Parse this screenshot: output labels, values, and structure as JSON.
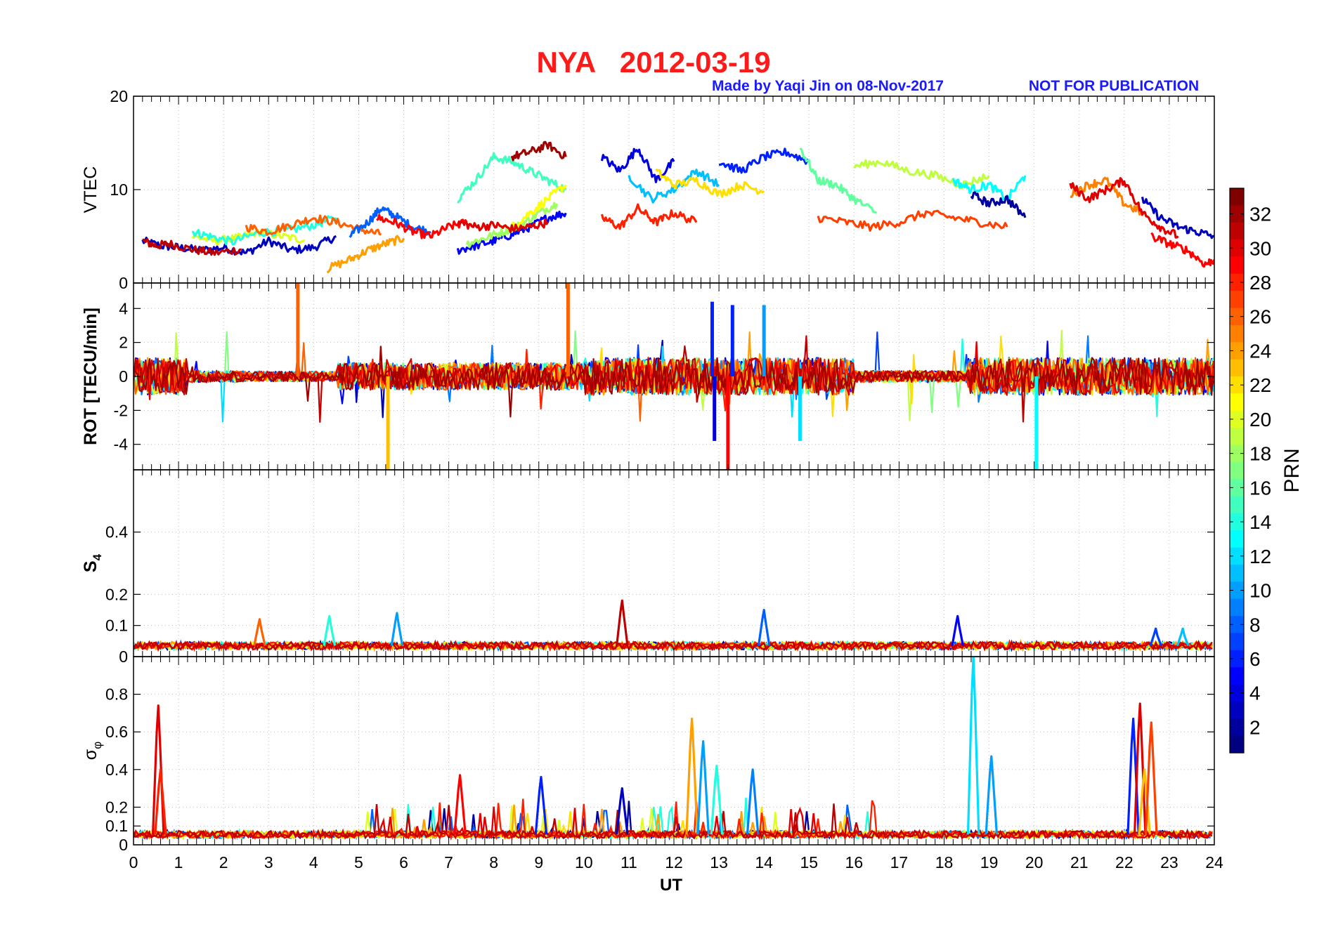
{
  "header": {
    "title": "NYA   2012-03-19",
    "credit": "Made by Yaqi Jin on 08-Nov-2017",
    "notice": "NOT FOR PUBLICATION",
    "title_color": "#ff1a1a",
    "credit_color": "#1a1aff"
  },
  "chart_data": {
    "type": "line",
    "x_axis": {
      "label": "UT",
      "range": [
        0,
        24
      ],
      "ticks": [
        0,
        1,
        2,
        3,
        4,
        5,
        6,
        7,
        8,
        9,
        10,
        11,
        12,
        13,
        14,
        15,
        16,
        17,
        18,
        19,
        20,
        21,
        22,
        23,
        24
      ]
    },
    "grid": true,
    "panels": [
      {
        "id": "vtec",
        "ylabel": "VTEC",
        "ylim": [
          0,
          20
        ],
        "yticks": [
          0,
          10,
          20
        ],
        "series": [
          {
            "prn": 3,
            "x": [
              0.2,
              0.6,
              1.0,
              1.5,
              2.0,
              2.5,
              3.0,
              3.5,
              4.0,
              4.5
            ],
            "y": [
              4.5,
              4.0,
              3.8,
              3.5,
              3.8,
              3.2,
              4.5,
              3.5,
              3.8,
              5.0
            ]
          },
          {
            "prn": 31,
            "x": [
              0.2,
              0.5,
              0.8,
              1.3,
              1.8,
              2.4
            ],
            "y": [
              4.5,
              4.0,
              4.2,
              3.6,
              3.2,
              3.6
            ]
          },
          {
            "prn": 20,
            "x": [
              1.3,
              1.8,
              2.3,
              2.8,
              3.3,
              3.8
            ],
            "y": [
              5.0,
              4.5,
              4.8,
              5.5,
              5.0,
              4.6
            ]
          },
          {
            "prn": 14,
            "x": [
              1.3,
              1.7,
              2.2,
              2.8,
              3.4,
              4.0,
              4.5
            ],
            "y": [
              5.5,
              5.0,
              4.4,
              5.4,
              5.6,
              6.2,
              7.0
            ]
          },
          {
            "prn": 26,
            "x": [
              2.5,
              3.0,
              3.5,
              4.0,
              4.5,
              5.0,
              5.5
            ],
            "y": [
              6.0,
              5.5,
              6.2,
              7.0,
              6.5,
              5.8,
              5.2
            ]
          },
          {
            "prn": 8,
            "x": [
              4.8,
              5.2,
              5.5,
              5.8,
              6.2,
              6.6
            ],
            "y": [
              5.0,
              6.5,
              8.0,
              7.2,
              6.0,
              5.5
            ]
          },
          {
            "prn": 24,
            "x": [
              4.3,
              4.8,
              5.2,
              5.6,
              6.0
            ],
            "y": [
              1.5,
              2.5,
              3.5,
              4.2,
              4.8
            ]
          },
          {
            "prn": 29,
            "x": [
              5.4,
              5.8,
              6.2,
              6.6,
              7.0,
              7.4
            ],
            "y": [
              7.0,
              6.5,
              5.5,
              5.0,
              6.0,
              6.5
            ]
          },
          {
            "prn": 5,
            "x": [
              7.2,
              7.6,
              8.0,
              8.4,
              8.8,
              9.2,
              9.6
            ],
            "y": [
              3.5,
              4.0,
              4.5,
              5.2,
              6.0,
              7.0,
              7.5
            ]
          },
          {
            "prn": 18,
            "x": [
              7.4,
              7.8,
              8.2,
              8.6,
              9.0,
              9.4
            ],
            "y": [
              4.2,
              4.8,
              5.5,
              6.2,
              7.5,
              8.5
            ]
          },
          {
            "prn": 15,
            "x": [
              7.2,
              7.6,
              8.0,
              8.4,
              8.8,
              9.2,
              9.6
            ],
            "y": [
              9.0,
              11.0,
              13.5,
              13.0,
              12.0,
              11.0,
              10.0
            ]
          },
          {
            "prn": 21,
            "x": [
              8.4,
              8.8,
              9.2,
              9.6
            ],
            "y": [
              6.0,
              7.5,
              9.0,
              10.5
            ]
          },
          {
            "prn": 32,
            "x": [
              8.4,
              8.8,
              9.2,
              9.6
            ],
            "y": [
              13.5,
              14.0,
              14.8,
              13.5
            ]
          },
          {
            "prn": 30,
            "x": [
              7.2,
              7.6,
              8.0,
              8.4,
              8.8,
              9.2
            ],
            "y": [
              6.5,
              6.0,
              6.2,
              5.8,
              6.0,
              6.5
            ]
          },
          {
            "prn": 4,
            "x": [
              10.4,
              10.8,
              11.2,
              11.6,
              12.0
            ],
            "y": [
              13.5,
              12.0,
              14.5,
              11.0,
              13.0
            ]
          },
          {
            "prn": 28,
            "x": [
              10.4,
              10.8,
              11.2,
              11.6,
              12.0,
              12.5
            ],
            "y": [
              7.0,
              6.0,
              8.0,
              6.5,
              7.5,
              6.5
            ]
          },
          {
            "prn": 11,
            "x": [
              11.0,
              11.5,
              12.0,
              12.5,
              13.0
            ],
            "y": [
              11.5,
              9.0,
              10.0,
              12.0,
              10.5
            ]
          },
          {
            "prn": 22,
            "x": [
              11.6,
              12.0,
              12.5,
              13.0,
              13.5,
              14.0
            ],
            "y": [
              12.0,
              10.5,
              11.0,
              9.5,
              10.5,
              9.8
            ]
          },
          {
            "prn": 6,
            "x": [
              13.0,
              13.5,
              14.0,
              14.5,
              15.0
            ],
            "y": [
              13.0,
              12.0,
              13.5,
              14.0,
              13.0
            ]
          },
          {
            "prn": 16,
            "x": [
              14.8,
              15.2,
              15.6,
              16.0,
              16.5
            ],
            "y": [
              14.5,
              11.0,
              10.5,
              9.0,
              7.5
            ]
          },
          {
            "prn": 27,
            "x": [
              15.2,
              15.8,
              16.4,
              17.0,
              17.6,
              18.2,
              18.8,
              19.4
            ],
            "y": [
              7.0,
              6.5,
              6.0,
              6.5,
              7.5,
              7.0,
              6.5,
              6.0
            ]
          },
          {
            "prn": 19,
            "x": [
              16.0,
              16.6,
              17.2,
              17.8,
              18.4,
              19.0
            ],
            "y": [
              12.5,
              13.0,
              12.0,
              11.5,
              10.5,
              11.5
            ]
          },
          {
            "prn": 13,
            "x": [
              18.2,
              18.6,
              19.0,
              19.4,
              19.8
            ],
            "y": [
              11.0,
              10.0,
              10.5,
              9.0,
              11.5
            ]
          },
          {
            "prn": 2,
            "x": [
              18.6,
              19.0,
              19.4,
              19.8
            ],
            "y": [
              9.5,
              8.5,
              9.0,
              7.0
            ]
          },
          {
            "prn": 25,
            "x": [
              20.8,
              21.2,
              21.6,
              22.0,
              22.4
            ],
            "y": [
              9.5,
              10.5,
              11.0,
              8.5,
              7.5
            ]
          },
          {
            "prn": 30,
            "x": [
              20.8,
              21.2,
              21.6,
              22.0,
              22.4,
              22.8,
              23.2
            ],
            "y": [
              10.5,
              9.0,
              10.0,
              11.0,
              7.5,
              6.0,
              5.0
            ]
          },
          {
            "prn": 3,
            "x": [
              22.4,
              22.8,
              23.2,
              23.6,
              24.0
            ],
            "y": [
              9.0,
              7.0,
              6.0,
              5.5,
              5.0
            ]
          },
          {
            "prn": 29,
            "x": [
              22.6,
              23.0,
              23.4,
              23.8,
              24.0
            ],
            "y": [
              5.0,
              4.2,
              3.5,
              2.0,
              2.5
            ]
          }
        ]
      },
      {
        "id": "rot",
        "ylabel": "ROT [TECU/min]",
        "ylim": [
          -5.5,
          5.5
        ],
        "yticks": [
          -4,
          -2,
          0,
          2,
          4
        ],
        "spikes": [
          {
            "prn": 26,
            "x": 3.65,
            "y": 5.5
          },
          {
            "prn": 26,
            "x": 9.65,
            "y": 5.5
          },
          {
            "prn": 23,
            "x": 5.65,
            "y": -5.5
          },
          {
            "prn": 29,
            "x": 13.2,
            "y": -5.5
          },
          {
            "prn": 13,
            "x": 20.05,
            "y": -5.5
          },
          {
            "prn": 6,
            "x": 12.85,
            "y": 4.4
          },
          {
            "prn": 6,
            "x": 13.3,
            "y": 4.2
          },
          {
            "prn": 10,
            "x": 14.0,
            "y": 4.2
          },
          {
            "prn": 12,
            "x": 14.8,
            "y": -3.8
          },
          {
            "prn": 4,
            "x": 12.9,
            "y": -3.8
          },
          {
            "prn": 28,
            "x": 24.0,
            "y": 0.5
          }
        ]
      },
      {
        "id": "s4",
        "ylabel": "S4",
        "ylim": [
          0,
          0.6
        ],
        "yticks": [
          0,
          0.1,
          0.2,
          0.4
        ],
        "peaks": [
          {
            "prn": 26,
            "x": 2.8,
            "y": 0.12
          },
          {
            "prn": 14,
            "x": 4.35,
            "y": 0.13
          },
          {
            "prn": 10,
            "x": 5.85,
            "y": 0.14
          },
          {
            "prn": 31,
            "x": 10.85,
            "y": 0.18
          },
          {
            "prn": 8,
            "x": 14.0,
            "y": 0.15
          },
          {
            "prn": 5,
            "x": 18.3,
            "y": 0.13
          },
          {
            "prn": 7,
            "x": 22.7,
            "y": 0.09
          },
          {
            "prn": 11,
            "x": 23.3,
            "y": 0.09
          }
        ]
      },
      {
        "id": "sigma_phi",
        "ylabel": "σφ",
        "ylim": [
          0,
          1
        ],
        "yticks": [
          0,
          0.1,
          0.2,
          0.4,
          0.6,
          0.8
        ],
        "peaks": [
          {
            "prn": 30,
            "x": 0.55,
            "y": 0.74
          },
          {
            "prn": 28,
            "x": 0.6,
            "y": 0.4
          },
          {
            "prn": 29,
            "x": 7.25,
            "y": 0.37
          },
          {
            "prn": 6,
            "x": 9.05,
            "y": 0.36
          },
          {
            "prn": 3,
            "x": 10.85,
            "y": 0.3
          },
          {
            "prn": 24,
            "x": 12.4,
            "y": 0.67
          },
          {
            "prn": 10,
            "x": 12.65,
            "y": 0.55
          },
          {
            "prn": 14,
            "x": 12.95,
            "y": 0.42
          },
          {
            "prn": 9,
            "x": 13.75,
            "y": 0.4
          },
          {
            "prn": 12,
            "x": 18.65,
            "y": 1.0
          },
          {
            "prn": 10,
            "x": 19.05,
            "y": 0.47
          },
          {
            "prn": 6,
            "x": 22.2,
            "y": 0.67
          },
          {
            "prn": 30,
            "x": 22.35,
            "y": 0.75
          },
          {
            "prn": 23,
            "x": 22.45,
            "y": 0.4
          },
          {
            "prn": 27,
            "x": 22.6,
            "y": 0.65
          }
        ]
      }
    ],
    "colorbar": {
      "label": "PRN",
      "range": [
        1,
        33
      ],
      "ticks": [
        2,
        4,
        6,
        8,
        10,
        12,
        14,
        16,
        18,
        20,
        22,
        24,
        26,
        28,
        30,
        32
      ],
      "colormap": "jet"
    }
  }
}
